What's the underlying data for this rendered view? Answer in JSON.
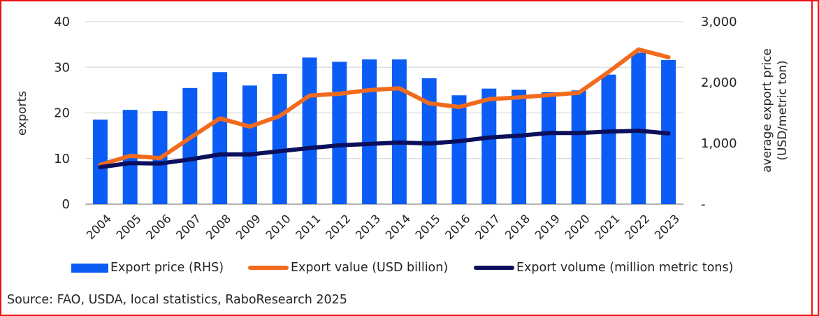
{
  "chart_data": {
    "type": "bar",
    "title": "",
    "categories": [
      "2004",
      "2005",
      "2006",
      "2007",
      "2008",
      "2009",
      "2010",
      "2011",
      "2012",
      "2013",
      "2014",
      "2015",
      "2016",
      "2017",
      "2018",
      "2019",
      "2020",
      "2021",
      "2022",
      "2023"
    ],
    "series": [
      {
        "name": "Export price (RHS)",
        "type": "bar",
        "axis": "right",
        "color": "#0a5cf5",
        "values": [
          1390,
          1550,
          1530,
          1910,
          2170,
          1950,
          2140,
          2410,
          2340,
          2380,
          2380,
          2070,
          1790,
          1900,
          1880,
          1840,
          1870,
          2130,
          2490,
          2370
        ]
      },
      {
        "name": "Export value (USD billion)",
        "type": "line",
        "axis": "left",
        "color": "#f26b1d",
        "values": [
          8.6,
          10.6,
          10.1,
          14.5,
          18.8,
          17.0,
          19.3,
          23.8,
          24.2,
          25.0,
          25.4,
          22.1,
          21.3,
          23.0,
          23.4,
          23.9,
          24.4,
          29.0,
          33.9,
          32.2
        ]
      },
      {
        "name": "Export volume (million metric tons)",
        "type": "line",
        "axis": "left",
        "color": "#0b0f5c",
        "values": [
          8.1,
          9.0,
          8.9,
          9.8,
          10.9,
          10.9,
          11.6,
          12.3,
          12.9,
          13.2,
          13.5,
          13.3,
          13.8,
          14.6,
          15.0,
          15.6,
          15.6,
          15.9,
          16.1,
          15.5
        ]
      }
    ],
    "ylabel": "exports",
    "ylim": [
      0,
      40
    ],
    "yticks": [
      "0",
      "10",
      "20",
      "30",
      "40"
    ],
    "y2label_line1": "average export price",
    "y2label_line2": "(USD/metric ton)",
    "y2lim": [
      0,
      3000
    ],
    "y2ticks": [
      "-",
      "1,000",
      "2,000",
      "3,000"
    ],
    "grid": true,
    "legend_position": "bottom",
    "source": "Source: FAO, USDA, local statistics, RaboResearch 2025"
  }
}
